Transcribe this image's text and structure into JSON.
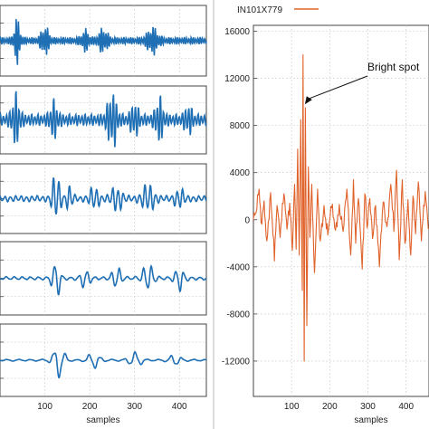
{
  "colors": {
    "trace_blue": "#1f6fb5",
    "trace_orange": "#e0622a",
    "grid": "#c8c8c8",
    "frame": "#444444"
  },
  "chart_data": [
    {
      "type": "line",
      "panel": "left-1",
      "x": {
        "ticks": [
          100,
          200,
          300,
          400
        ],
        "lim": [
          0,
          460
        ],
        "label": ""
      },
      "series": [
        {
          "name": "",
          "color": "#1f6fb5",
          "bursts": [
            {
              "center": 38,
              "width": 8,
              "amp": 0.7
            },
            {
              "center": 100,
              "width": 10,
              "amp": 0.45
            },
            {
              "center": 190,
              "width": 10,
              "amp": 0.3
            },
            {
              "center": 230,
              "width": 12,
              "amp": 0.35
            },
            {
              "center": 340,
              "width": 14,
              "amp": 0.4
            }
          ],
          "noise": 0.12,
          "period": 5
        }
      ],
      "grid": true
    },
    {
      "type": "line",
      "panel": "left-2",
      "x": {
        "ticks": [
          100,
          200,
          300,
          400
        ],
        "lim": [
          0,
          460
        ],
        "label": ""
      },
      "series": [
        {
          "name": "",
          "color": "#1f6fb5",
          "bursts": [
            {
              "center": 35,
              "width": 10,
              "amp": 0.8
            },
            {
              "center": 120,
              "width": 10,
              "amp": 0.55
            },
            {
              "center": 250,
              "width": 12,
              "amp": 0.9
            },
            {
              "center": 300,
              "width": 10,
              "amp": 0.5
            },
            {
              "center": 355,
              "width": 10,
              "amp": 0.7
            },
            {
              "center": 420,
              "width": 10,
              "amp": 0.4
            }
          ],
          "noise": 0.2,
          "period": 7
        }
      ],
      "grid": true
    },
    {
      "type": "line",
      "panel": "left-3",
      "x": {
        "ticks": [
          100,
          200,
          300,
          400
        ],
        "lim": [
          0,
          460
        ],
        "label": ""
      },
      "series": [
        {
          "name": "",
          "color": "#1f6fb5",
          "bursts": [
            {
              "center": 125,
              "width": 10,
              "amp": 0.85
            },
            {
              "center": 155,
              "width": 8,
              "amp": 0.4
            },
            {
              "center": 210,
              "width": 12,
              "amp": 0.35
            },
            {
              "center": 260,
              "width": 14,
              "amp": 0.4
            },
            {
              "center": 330,
              "width": 16,
              "amp": 0.45
            },
            {
              "center": 400,
              "width": 12,
              "amp": 0.3
            }
          ],
          "noise": 0.1,
          "period": 12
        }
      ],
      "grid": true
    },
    {
      "type": "line",
      "panel": "left-4",
      "x": {
        "ticks": [
          100,
          200,
          300,
          400
        ],
        "lim": [
          0,
          460
        ],
        "label": ""
      },
      "series": [
        {
          "name": "",
          "color": "#1f6fb5",
          "bursts": [
            {
              "center": 125,
              "width": 10,
              "amp": 0.65
            },
            {
              "center": 190,
              "width": 12,
              "amp": 0.3
            },
            {
              "center": 260,
              "width": 12,
              "amp": 0.35
            },
            {
              "center": 330,
              "width": 14,
              "amp": 0.45
            },
            {
              "center": 400,
              "width": 12,
              "amp": 0.4
            }
          ],
          "noise": 0.05,
          "period": 18
        }
      ],
      "grid": true
    },
    {
      "type": "line",
      "panel": "left-5",
      "x": {
        "ticks": [
          100,
          200,
          300,
          400
        ],
        "lim": [
          0,
          460
        ],
        "label": "samples"
      },
      "series": [
        {
          "name": "",
          "color": "#1f6fb5",
          "bursts": [
            {
              "center": 130,
              "width": 14,
              "amp": 0.6
            },
            {
              "center": 210,
              "width": 16,
              "amp": 0.25
            },
            {
              "center": 300,
              "width": 16,
              "amp": 0.25
            },
            {
              "center": 390,
              "width": 14,
              "amp": 0.2
            }
          ],
          "noise": 0.03,
          "period": 26
        }
      ],
      "grid": true
    },
    {
      "type": "line",
      "panel": "right",
      "x": {
        "ticks": [
          100,
          200,
          300,
          400
        ],
        "lim": [
          0,
          460
        ],
        "label": "samples"
      },
      "y": {
        "ticks": [
          16000,
          12000,
          8000,
          4000,
          0,
          -4000,
          -8000,
          -12000
        ],
        "tick_labels": [
          "16000",
          "12000",
          "8000",
          "4000",
          "0",
          "-4000",
          "-8000",
          "-12000"
        ],
        "lim": [
          -15000,
          16500
        ]
      },
      "series": [
        {
          "name": "IN101X779",
          "color": "#e0622a",
          "anchors": [
            [
              0,
              0
            ],
            [
              5,
              500
            ],
            [
              15,
              2600
            ],
            [
              20,
              -200
            ],
            [
              28,
              1600
            ],
            [
              35,
              -1800
            ],
            [
              45,
              2300
            ],
            [
              55,
              -3500
            ],
            [
              62,
              1200
            ],
            [
              70,
              -1500
            ],
            [
              80,
              2200
            ],
            [
              88,
              -800
            ],
            [
              95,
              1400
            ],
            [
              102,
              -2600
            ],
            [
              108,
              3000
            ],
            [
              112,
              -2500
            ],
            [
              116,
              6000
            ],
            [
              120,
              -3000
            ],
            [
              124,
              8500
            ],
            [
              128,
              -6000
            ],
            [
              130,
              14000
            ],
            [
              133,
              -12000
            ],
            [
              136,
              9500
            ],
            [
              140,
              -9000
            ],
            [
              144,
              4500
            ],
            [
              148,
              -1500
            ],
            [
              153,
              3000
            ],
            [
              160,
              -4500
            ],
            [
              168,
              2600
            ],
            [
              175,
              -1800
            ],
            [
              185,
              1200
            ],
            [
              195,
              -1300
            ],
            [
              205,
              1000
            ],
            [
              215,
              -900
            ],
            [
              225,
              1300
            ],
            [
              235,
              -1000
            ],
            [
              245,
              2600
            ],
            [
              255,
              -3000
            ],
            [
              262,
              3400
            ],
            [
              268,
              -2000
            ],
            [
              275,
              1800
            ],
            [
              285,
              -4200
            ],
            [
              292,
              2200
            ],
            [
              298,
              -700
            ],
            [
              305,
              1800
            ],
            [
              312,
              -1600
            ],
            [
              320,
              1200
            ],
            [
              330,
              -4000
            ],
            [
              340,
              1500
            ],
            [
              350,
              -600
            ],
            [
              360,
              3000
            ],
            [
              368,
              -1000
            ],
            [
              375,
              4200
            ],
            [
              382,
              -3400
            ],
            [
              390,
              3400
            ],
            [
              397,
              -2000
            ],
            [
              405,
              1700
            ],
            [
              412,
              -3000
            ],
            [
              418,
              2000
            ],
            [
              425,
              -1200
            ],
            [
              432,
              3200
            ],
            [
              440,
              -1800
            ],
            [
              450,
              2400
            ],
            [
              460,
              -800
            ]
          ]
        }
      ],
      "annotations": [
        {
          "text": "Bright spot",
          "point_x": 130,
          "point_y": 9800
        }
      ],
      "legend": "top-left",
      "grid": true
    }
  ]
}
